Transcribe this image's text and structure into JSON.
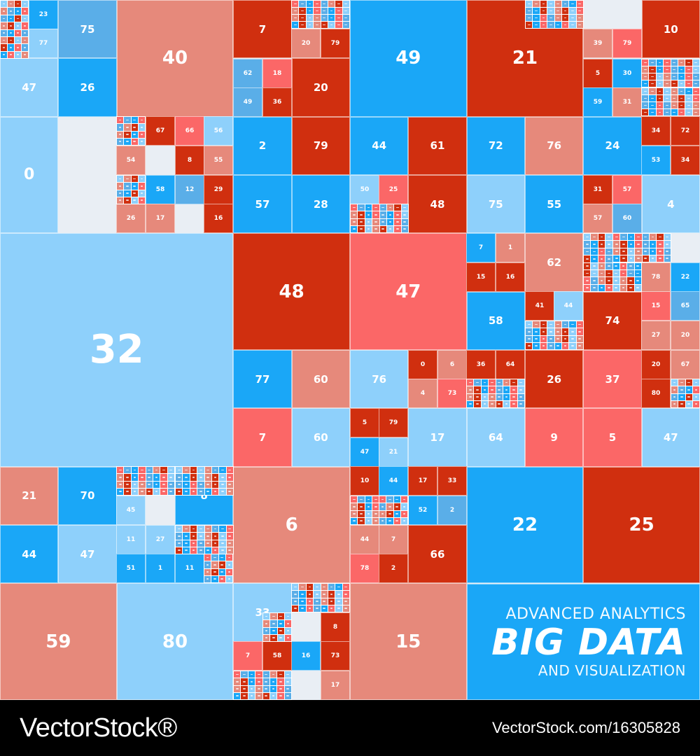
{
  "palette": [
    "#8ed0fb",
    "#1aa7f7",
    "#e6897b",
    "#fb6767",
    "#d02f0f",
    "#5aaee8"
  ],
  "heading": {
    "line1": "ADVANCED ANALYTICS",
    "line2": "BIG DATA",
    "line3": "AND VISUALIZATION"
  },
  "footer": {
    "logo": "VectorStock®",
    "image_id": "VectorStock.com/16305828"
  },
  "treemap": {
    "large": [
      {
        "value": "32",
        "color": 0
      },
      {
        "value": "40",
        "color": 2
      },
      {
        "value": "49",
        "color": 1
      },
      {
        "value": "21",
        "color": 4
      },
      {
        "value": "48",
        "color": 4
      },
      {
        "value": "47",
        "color": 3
      },
      {
        "value": "6",
        "color": 2
      },
      {
        "value": "22",
        "color": 1
      },
      {
        "value": "25",
        "color": 4
      },
      {
        "value": "59",
        "color": 2
      },
      {
        "value": "80",
        "color": 0
      },
      {
        "value": "15",
        "color": 2
      },
      {
        "value": "0",
        "color": 0
      }
    ],
    "medium": [
      {
        "value": "75",
        "color": 5
      },
      {
        "value": "47",
        "color": 0
      },
      {
        "value": "26",
        "color": 1
      },
      {
        "value": "7",
        "color": 4
      },
      {
        "value": "20",
        "color": 4
      },
      {
        "value": "10",
        "color": 4
      },
      {
        "value": "2",
        "color": 1
      },
      {
        "value": "79",
        "color": 4
      },
      {
        "value": "57",
        "color": 1
      },
      {
        "value": "28",
        "color": 1
      },
      {
        "value": "44",
        "color": 1
      },
      {
        "value": "61",
        "color": 4
      },
      {
        "value": "48",
        "color": 4
      },
      {
        "value": "72",
        "color": 1
      },
      {
        "value": "76",
        "color": 2
      },
      {
        "value": "75",
        "color": 0
      },
      {
        "value": "55",
        "color": 1
      },
      {
        "value": "24",
        "color": 1
      },
      {
        "value": "4",
        "color": 0
      },
      {
        "value": "62",
        "color": 2
      },
      {
        "value": "58",
        "color": 1
      },
      {
        "value": "74",
        "color": 4
      },
      {
        "value": "77",
        "color": 1
      },
      {
        "value": "60",
        "color": 2
      },
      {
        "value": "7",
        "color": 3
      },
      {
        "value": "60",
        "color": 0
      },
      {
        "value": "76",
        "color": 0
      },
      {
        "value": "17",
        "color": 0
      },
      {
        "value": "64",
        "color": 0
      },
      {
        "value": "26",
        "color": 4
      },
      {
        "value": "37",
        "color": 3
      },
      {
        "value": "9",
        "color": 3
      },
      {
        "value": "5",
        "color": 3
      },
      {
        "value": "47",
        "color": 0
      },
      {
        "value": "21",
        "color": 2
      },
      {
        "value": "70",
        "color": 1
      },
      {
        "value": "44",
        "color": 1
      },
      {
        "value": "47",
        "color": 0
      },
      {
        "value": "8",
        "color": 1
      },
      {
        "value": "66",
        "color": 4
      },
      {
        "value": "33",
        "color": 0
      }
    ],
    "small": [
      {
        "value": "23",
        "color": 1
      },
      {
        "value": "77",
        "color": 0
      },
      {
        "value": "62",
        "color": 5
      },
      {
        "value": "18",
        "color": 3
      },
      {
        "value": "49",
        "color": 5
      },
      {
        "value": "36",
        "color": 4
      },
      {
        "value": "20",
        "color": 2
      },
      {
        "value": "79",
        "color": 4
      },
      {
        "value": "39",
        "color": 2
      },
      {
        "value": "79",
        "color": 3
      },
      {
        "value": "5",
        "color": 4
      },
      {
        "value": "30",
        "color": 1
      },
      {
        "value": "35",
        "color": 4
      },
      {
        "value": "59",
        "color": 1
      },
      {
        "value": "31",
        "color": 2
      },
      {
        "value": "34",
        "color": 4
      },
      {
        "value": "72",
        "color": 4
      },
      {
        "value": "53",
        "color": 1
      },
      {
        "value": "34",
        "color": 4
      },
      {
        "value": "31",
        "color": 4
      },
      {
        "value": "57",
        "color": 3
      },
      {
        "value": "57",
        "color": 2
      },
      {
        "value": "60",
        "color": 5
      },
      {
        "value": "67",
        "color": 4
      },
      {
        "value": "66",
        "color": 3
      },
      {
        "value": "56",
        "color": 0
      },
      {
        "value": "54",
        "color": 2
      },
      {
        "value": "8",
        "color": 4
      },
      {
        "value": "55",
        "color": 2
      },
      {
        "value": "58",
        "color": 1
      },
      {
        "value": "12",
        "color": 5
      },
      {
        "value": "29",
        "color": 4
      },
      {
        "value": "26",
        "color": 2
      },
      {
        "value": "17",
        "color": 2
      },
      {
        "value": "16",
        "color": 4
      },
      {
        "value": "50",
        "color": 0
      },
      {
        "value": "25",
        "color": 3
      },
      {
        "value": "7",
        "color": 1
      },
      {
        "value": "1",
        "color": 2
      },
      {
        "value": "15",
        "color": 4
      },
      {
        "value": "16",
        "color": 4
      },
      {
        "value": "41",
        "color": 4
      },
      {
        "value": "44",
        "color": 0
      },
      {
        "value": "15",
        "color": 3
      },
      {
        "value": "65",
        "color": 5
      },
      {
        "value": "27",
        "color": 2
      },
      {
        "value": "20",
        "color": 2
      },
      {
        "value": "22",
        "color": 1
      },
      {
        "value": "78",
        "color": 2
      },
      {
        "value": "0",
        "color": 4
      },
      {
        "value": "6",
        "color": 2
      },
      {
        "value": "4",
        "color": 2
      },
      {
        "value": "73",
        "color": 3
      },
      {
        "value": "36",
        "color": 4
      },
      {
        "value": "64",
        "color": 4
      },
      {
        "value": "20",
        "color": 4
      },
      {
        "value": "67",
        "color": 2
      },
      {
        "value": "80",
        "color": 4
      },
      {
        "value": "5",
        "color": 4
      },
      {
        "value": "79",
        "color": 4
      },
      {
        "value": "47",
        "color": 1
      },
      {
        "value": "21",
        "color": 0
      },
      {
        "value": "10",
        "color": 4
      },
      {
        "value": "44",
        "color": 1
      },
      {
        "value": "17",
        "color": 4
      },
      {
        "value": "33",
        "color": 4
      },
      {
        "value": "52",
        "color": 1
      },
      {
        "value": "2",
        "color": 5
      },
      {
        "value": "44",
        "color": 2
      },
      {
        "value": "7",
        "color": 2
      },
      {
        "value": "78",
        "color": 3
      },
      {
        "value": "2",
        "color": 4
      },
      {
        "value": "45",
        "color": 0
      },
      {
        "value": "11",
        "color": 0
      },
      {
        "value": "27",
        "color": 0
      },
      {
        "value": "48",
        "color": 0
      },
      {
        "value": "51",
        "color": 1
      },
      {
        "value": "1",
        "color": 1
      },
      {
        "value": "11",
        "color": 1
      },
      {
        "value": "11",
        "color": 4
      },
      {
        "value": "8",
        "color": 4
      },
      {
        "value": "73",
        "color": 4
      },
      {
        "value": "16",
        "color": 1
      },
      {
        "value": "75",
        "color": 4
      },
      {
        "value": "7",
        "color": 3
      },
      {
        "value": "58",
        "color": 4
      },
      {
        "value": "17",
        "color": 2
      }
    ]
  }
}
